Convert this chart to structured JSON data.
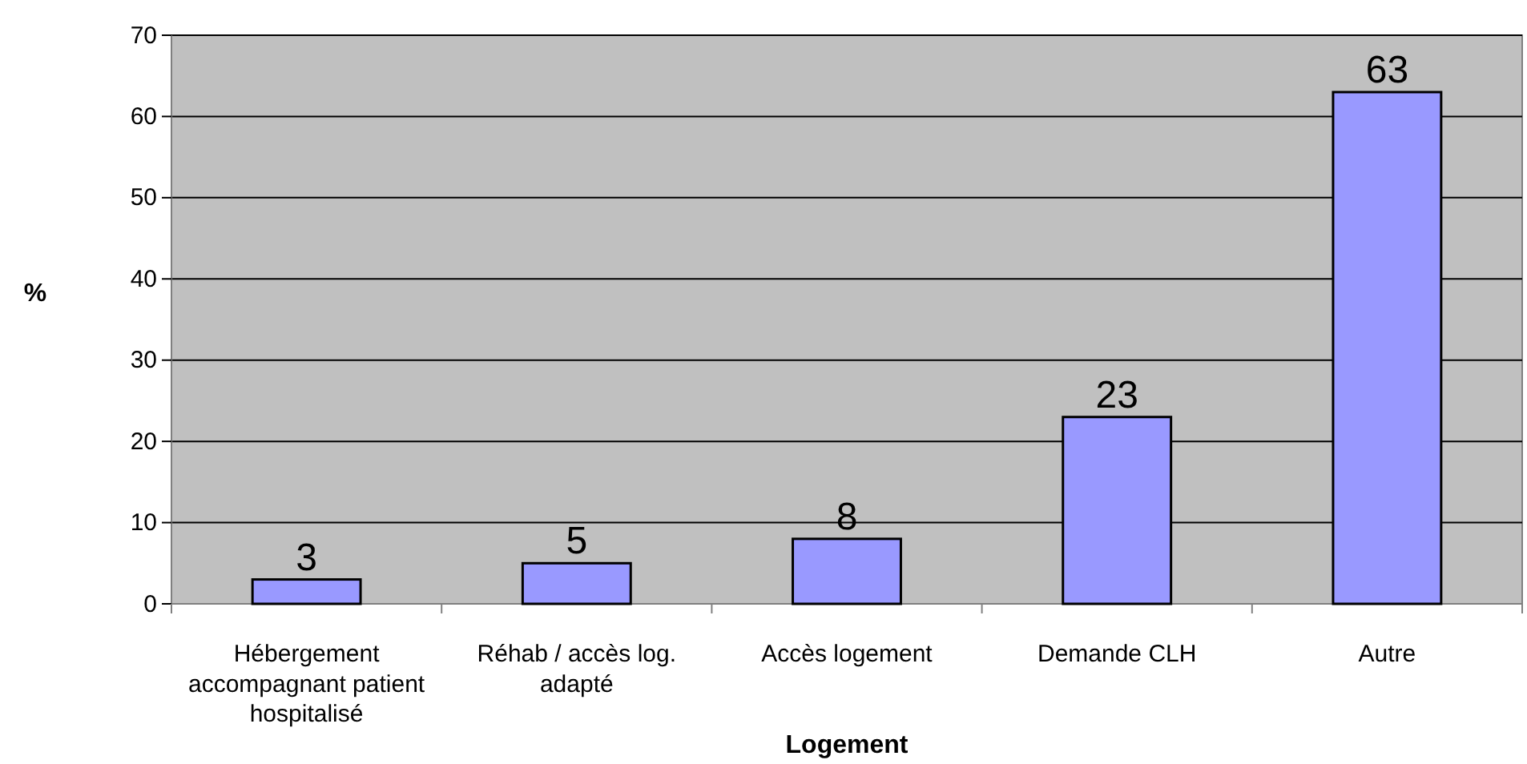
{
  "chart_data": {
    "type": "bar",
    "xlabel": "Logement",
    "ylabel": "%",
    "categories": [
      "Hébergement accompagnant patient hospitalisé",
      "Réhab / accès log. adapté",
      "Accès logement",
      "Demande CLH",
      "Autre"
    ],
    "values": [
      3,
      5,
      8,
      23,
      63
    ],
    "color": "#9999ff",
    "ylim": [
      0,
      70
    ],
    "yticks": [
      0,
      10,
      20,
      30,
      40,
      50,
      60,
      70
    ],
    "grid": "y",
    "data_labels": true
  }
}
